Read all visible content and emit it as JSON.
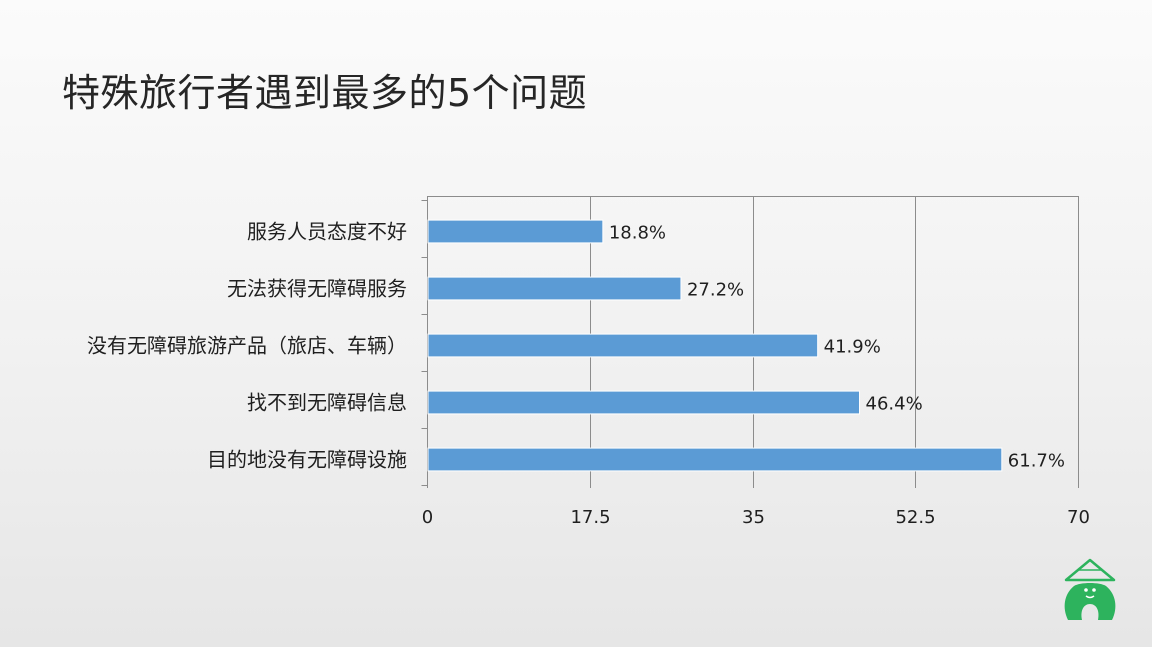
{
  "slide": {
    "title": "特殊旅行者遇到最多的5个问题"
  },
  "chart_data": {
    "type": "bar",
    "orientation": "horizontal",
    "title": "特殊旅行者遇到最多的5个问题",
    "categories": [
      "服务人员态度不好",
      "无法获得无障碍服务",
      "没有无障碍旅游产品（旅店、车辆）",
      "找不到无障碍信息",
      "目的地没有无障碍设施"
    ],
    "values": [
      18.8,
      27.2,
      41.9,
      46.4,
      61.7
    ],
    "value_labels": [
      "18.8%",
      "27.2%",
      "41.9%",
      "46.4%",
      "61.7%"
    ],
    "xlim": [
      0,
      70
    ],
    "x_ticks": [
      0,
      17.5,
      35,
      52.5,
      70
    ],
    "x_tick_labels": [
      "0",
      "17.5",
      "35",
      "52.5",
      "70"
    ],
    "grid": true,
    "bar_color": "#5b9bd5",
    "legend": "none"
  },
  "logo": {
    "icon": "gorilla-logo-icon",
    "color": "#2db35d"
  }
}
